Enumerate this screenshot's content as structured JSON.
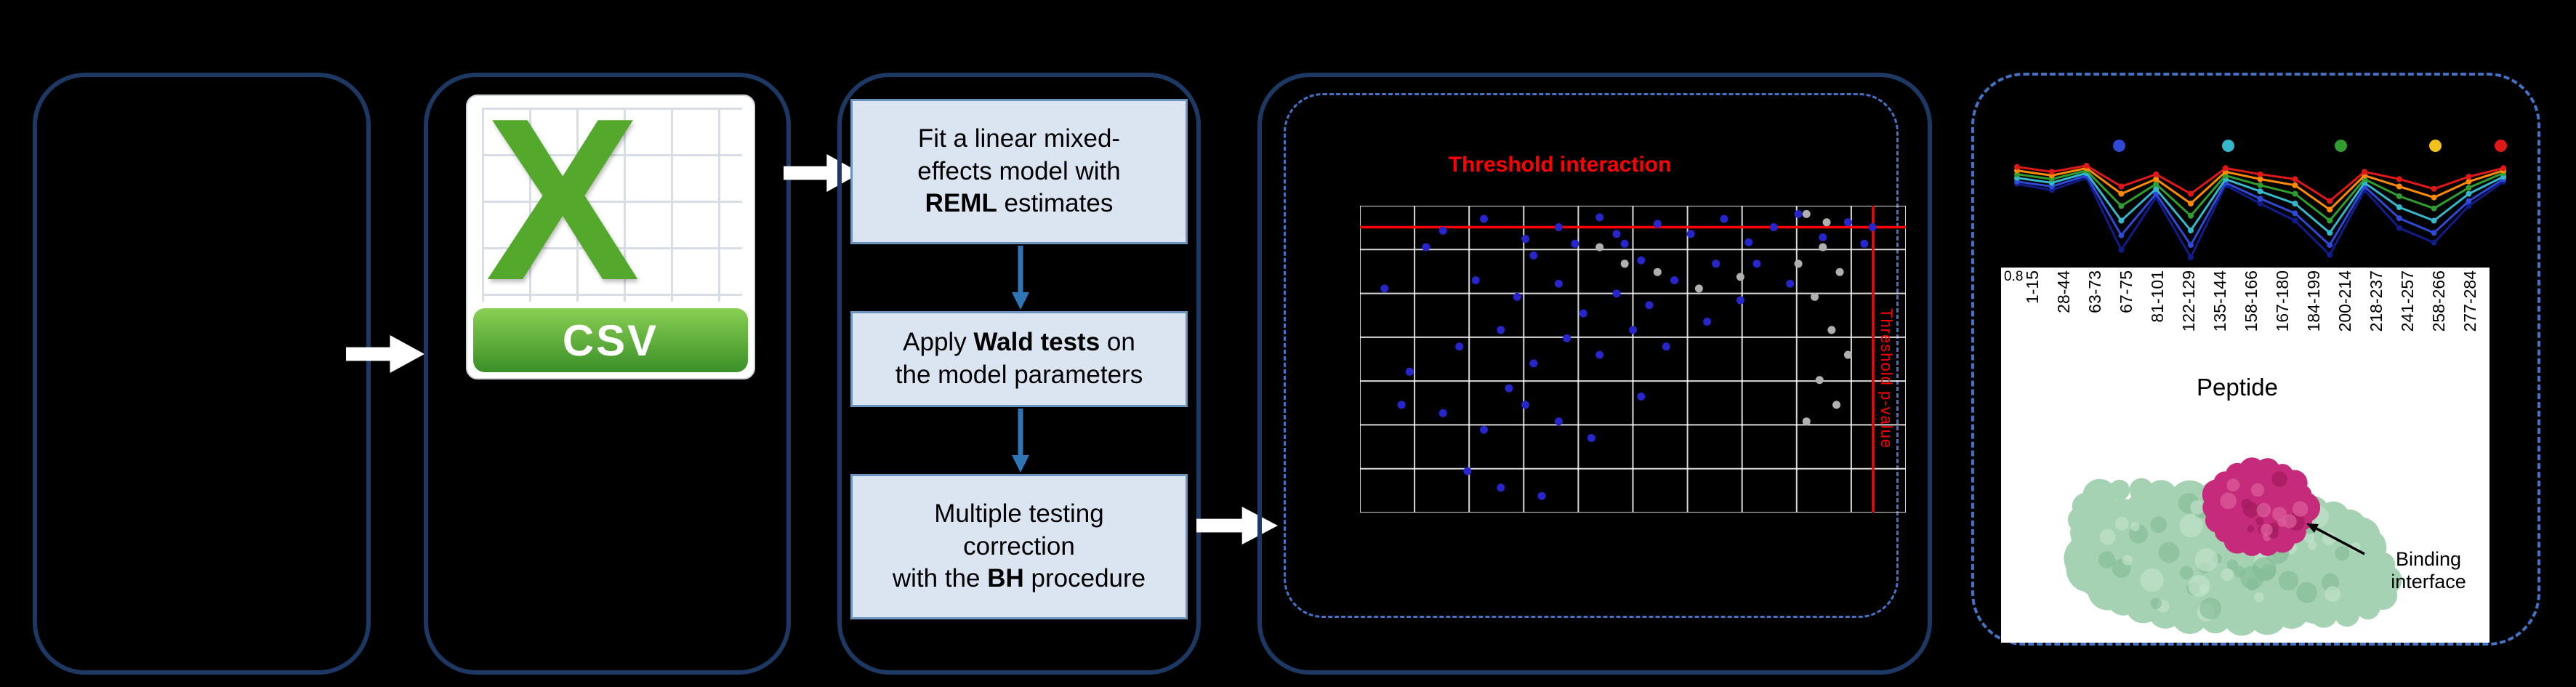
{
  "colors": {
    "background": "#000000",
    "panel_border": "#1e3864",
    "dashed_border": "#4472c4",
    "flow_arrow": "#ffffff",
    "step_fill": "#dbe5f1",
    "step_border": "#6b93bf",
    "step_arrow": "#2e75b6",
    "grid_line": "#ffffff",
    "threshold": "#ff0000",
    "significant_point": "#2626cc",
    "other_point": "#b0b0b0",
    "csv_green": "#54a82c",
    "csv_banner_top": "#8ad054",
    "csv_banner_bottom": "#3a8f27",
    "protein_surface": "#a5d2b3",
    "protein_surface_light": "#c3e4cd",
    "protein_surface_dark": "#84bd98",
    "protein_peptide": "#c62a7a",
    "protein_peptide_dark": "#a31a60",
    "protein_peptide_light": "#dd5f9e"
  },
  "csv_icon": {
    "letter": "X",
    "label": "CSV"
  },
  "steps": [
    {
      "segments": [
        [
          "Fit a linear mixed-\neffects model with\n",
          false
        ],
        [
          "REML",
          true
        ],
        [
          " estimates",
          false
        ]
      ]
    },
    {
      "segments": [
        [
          "Apply ",
          false
        ],
        [
          "Wald tests",
          true
        ],
        [
          " on\nthe model parameters",
          false
        ]
      ]
    },
    {
      "segments": [
        [
          "Multiple testing\ncorrection\nwith the ",
          false
        ],
        [
          "BH",
          true
        ],
        [
          " procedure",
          false
        ]
      ]
    }
  ],
  "volcano": {
    "title": "Threshold interaction",
    "side_label": "Threshold p-value",
    "grid": {
      "cols": 10,
      "rows": 7
    },
    "h_threshold": 0.07,
    "v_threshold": 0.94,
    "significant_points": [
      [
        0.152,
        0.081
      ],
      [
        0.227,
        0.043
      ],
      [
        0.303,
        0.108
      ],
      [
        0.364,
        0.07
      ],
      [
        0.439,
        0.038
      ],
      [
        0.485,
        0.124
      ],
      [
        0.545,
        0.059
      ],
      [
        0.606,
        0.092
      ],
      [
        0.667,
        0.043
      ],
      [
        0.712,
        0.119
      ],
      [
        0.758,
        0.07
      ],
      [
        0.803,
        0.027
      ],
      [
        0.848,
        0.103
      ],
      [
        0.894,
        0.054
      ],
      [
        0.318,
        0.162
      ],
      [
        0.515,
        0.178
      ],
      [
        0.652,
        0.189
      ],
      [
        0.121,
        0.135
      ],
      [
        0.212,
        0.243
      ],
      [
        0.288,
        0.297
      ],
      [
        0.364,
        0.254
      ],
      [
        0.409,
        0.351
      ],
      [
        0.47,
        0.286
      ],
      [
        0.53,
        0.324
      ],
      [
        0.576,
        0.243
      ],
      [
        0.636,
        0.378
      ],
      [
        0.697,
        0.308
      ],
      [
        0.379,
        0.432
      ],
      [
        0.439,
        0.486
      ],
      [
        0.5,
        0.405
      ],
      [
        0.561,
        0.459
      ],
      [
        0.318,
        0.514
      ],
      [
        0.258,
        0.405
      ],
      [
        0.182,
        0.459
      ],
      [
        0.152,
        0.676
      ],
      [
        0.227,
        0.73
      ],
      [
        0.303,
        0.649
      ],
      [
        0.364,
        0.703
      ],
      [
        0.424,
        0.757
      ],
      [
        0.273,
        0.595
      ],
      [
        0.515,
        0.622
      ],
      [
        0.076,
        0.649
      ],
      [
        0.258,
        0.919
      ],
      [
        0.333,
        0.946
      ],
      [
        0.197,
        0.865
      ],
      [
        0.045,
        0.27
      ],
      [
        0.091,
        0.541
      ],
      [
        0.924,
        0.124
      ],
      [
        0.939,
        0.07
      ],
      [
        0.47,
        0.092
      ],
      [
        0.394,
        0.124
      ],
      [
        0.727,
        0.189
      ],
      [
        0.788,
        0.254
      ]
    ],
    "other_points": [
      [
        0.818,
        0.027
      ],
      [
        0.848,
        0.135
      ],
      [
        0.879,
        0.216
      ],
      [
        0.833,
        0.297
      ],
      [
        0.864,
        0.405
      ],
      [
        0.894,
        0.486
      ],
      [
        0.842,
        0.568
      ],
      [
        0.873,
        0.649
      ],
      [
        0.818,
        0.703
      ],
      [
        0.855,
        0.054
      ],
      [
        0.803,
        0.189
      ],
      [
        0.545,
        0.216
      ],
      [
        0.621,
        0.27
      ],
      [
        0.485,
        0.189
      ],
      [
        0.697,
        0.232
      ],
      [
        0.439,
        0.135
      ]
    ]
  },
  "uptake": {
    "ytick": "0.8",
    "xlabel": "Peptide",
    "legend_colors": [
      "#2d49d6",
      "#35b8cc",
      "#2f9e2f",
      "#f2c21a",
      "#e01818"
    ],
    "series": [
      {
        "color": "#101c8a",
        "values": [
          0.66,
          0.61,
          0.71,
          0.12,
          0.55,
          0.06,
          0.65,
          0.5,
          0.36,
          0.08,
          0.61,
          0.3,
          0.18,
          0.48,
          0.68
        ]
      },
      {
        "color": "#2d49d6",
        "values": [
          0.68,
          0.64,
          0.73,
          0.24,
          0.58,
          0.16,
          0.67,
          0.54,
          0.42,
          0.16,
          0.64,
          0.38,
          0.26,
          0.52,
          0.7
        ]
      },
      {
        "color": "#35b8cc",
        "values": [
          0.71,
          0.67,
          0.75,
          0.36,
          0.62,
          0.28,
          0.7,
          0.6,
          0.5,
          0.26,
          0.67,
          0.47,
          0.36,
          0.58,
          0.72
        ]
      },
      {
        "color": "#2f9e2f",
        "values": [
          0.74,
          0.7,
          0.77,
          0.48,
          0.66,
          0.4,
          0.73,
          0.65,
          0.58,
          0.36,
          0.7,
          0.56,
          0.46,
          0.63,
          0.75
        ]
      },
      {
        "color": "#ff8a00",
        "values": [
          0.77,
          0.73,
          0.79,
          0.58,
          0.7,
          0.5,
          0.76,
          0.7,
          0.65,
          0.45,
          0.73,
          0.64,
          0.55,
          0.68,
          0.77
        ]
      },
      {
        "color": "#e01818",
        "values": [
          0.8,
          0.76,
          0.81,
          0.64,
          0.74,
          0.58,
          0.79,
          0.74,
          0.7,
          0.52,
          0.76,
          0.7,
          0.62,
          0.72,
          0.79
        ]
      }
    ],
    "peptides": [
      "1-15",
      "28-44",
      "63-73",
      "67-75",
      "81-101",
      "122-129",
      "135-144",
      "158-166",
      "167-180",
      "184-199",
      "200-214",
      "218-237",
      "241-257",
      "258-266",
      "277-284"
    ]
  },
  "protein": {
    "annotation": "Binding\ninterface"
  }
}
